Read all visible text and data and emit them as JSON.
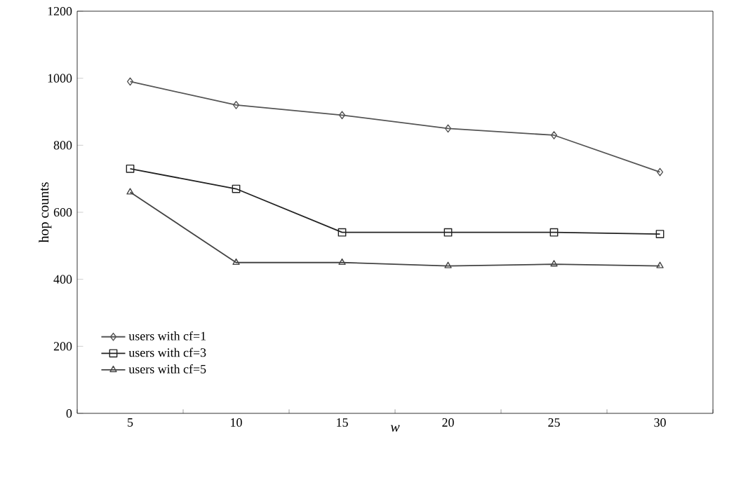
{
  "chart_data": {
    "type": "line",
    "xlabel": "*w*",
    "ylabel": "hop counts",
    "categories": [
      "5",
      "10",
      "15",
      "20",
      "25",
      "30"
    ],
    "ylim": [
      0,
      1200
    ],
    "yticks": [
      0,
      200,
      400,
      600,
      800,
      1000,
      1200
    ],
    "legend": "bottom left",
    "grid": false,
    "line_style": "solid",
    "series": [
      {
        "name": "users with cf=1",
        "color": "#555555",
        "marker": "diamond",
        "values": [
          990,
          920,
          890,
          850,
          830,
          720
        ]
      },
      {
        "name": "users with cf=3",
        "color": "#222222",
        "marker": "square",
        "values": [
          730,
          670,
          540,
          540,
          540,
          535
        ]
      },
      {
        "name": "users with cf=5",
        "color": "#444444",
        "marker": "triangle",
        "values": [
          660,
          450,
          450,
          440,
          445,
          440
        ]
      }
    ]
  }
}
